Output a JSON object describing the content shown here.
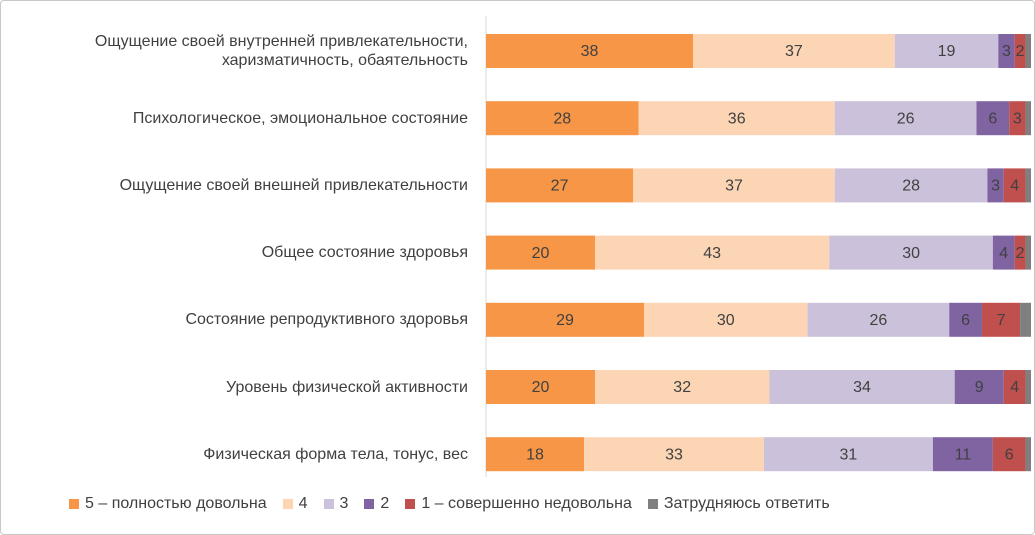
{
  "chart_data": {
    "type": "stacked-barh",
    "categories": [
      "Ощущение  своей внутренней привлекательности, харизматичность, обаятельность",
      "Психологическое, эмоциональное состояние",
      "Ощущение  своей внешней привлекательности",
      "Общее состояние здоровья",
      "Состояние репродуктивного здоровья",
      "Уровень физической активности",
      "Физическая форма тела, тонус, вес"
    ],
    "xlim": [
      0,
      100
    ],
    "series": [
      {
        "name": "5 – полностью довольна",
        "color": "#f79646",
        "values": [
          38,
          28,
          27,
          20,
          29,
          20,
          18
        ]
      },
      {
        "name": "4",
        "color": "#fcd5b5",
        "values": [
          37,
          36,
          37,
          43,
          30,
          32,
          33
        ]
      },
      {
        "name": "3",
        "color": "#ccc1da",
        "values": [
          19,
          26,
          28,
          30,
          26,
          34,
          31
        ]
      },
      {
        "name": "2",
        "color": "#8064a2",
        "values": [
          3,
          6,
          3,
          4,
          6,
          9,
          11
        ]
      },
      {
        "name": "1 – совершенно недовольна",
        "color": "#c0504d",
        "values": [
          2,
          3,
          4,
          2,
          7,
          4,
          6
        ]
      },
      {
        "name": "Затрудняюсь ответить",
        "color": "#7f7f7f",
        "values": [
          1,
          1,
          1,
          1,
          2,
          1,
          1
        ],
        "value_labels": [
          null,
          null,
          null,
          null,
          null,
          null,
          null
        ]
      }
    ]
  }
}
